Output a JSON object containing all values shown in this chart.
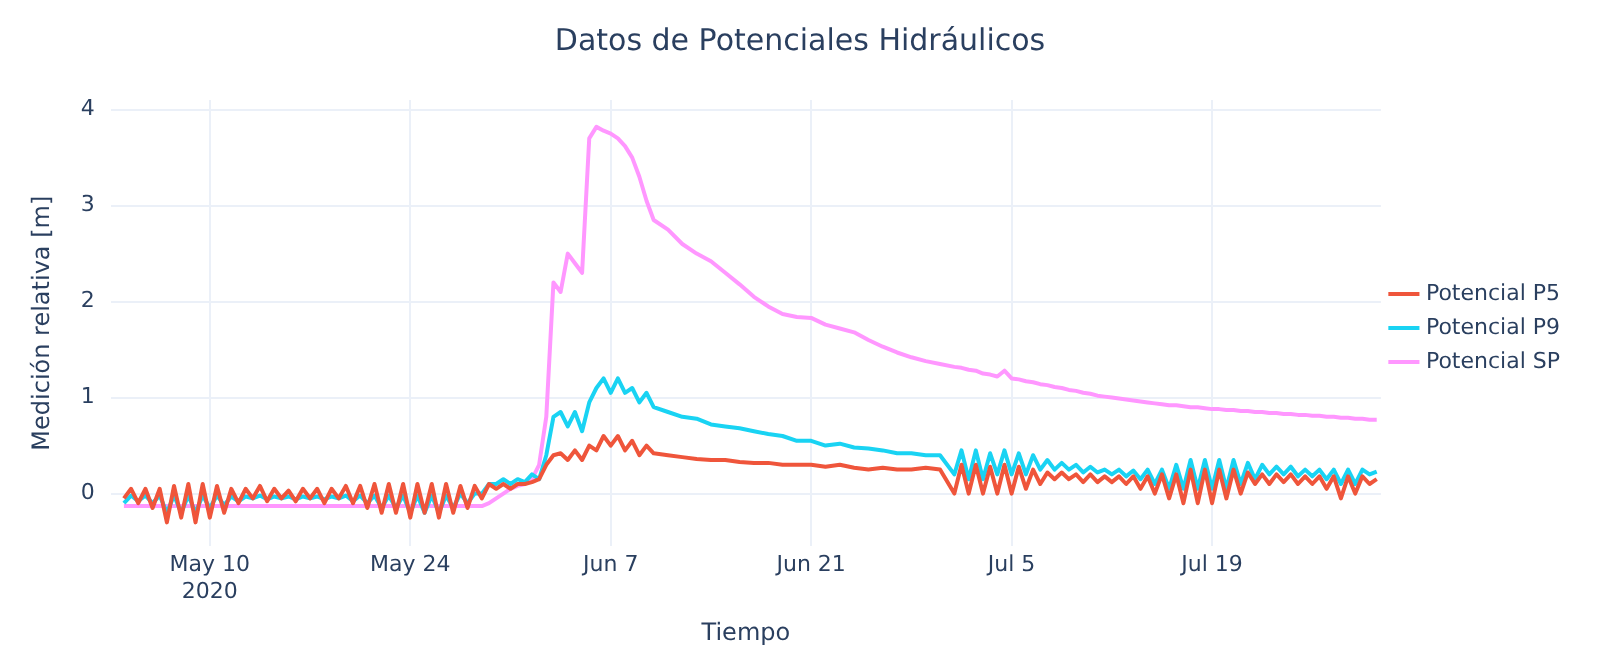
{
  "chart_data": {
    "type": "line",
    "title": "Datos de Potenciales Hidráulicos",
    "xlabel": "Tiempo",
    "ylabel": "Medición relativa [m]",
    "x": [
      "2020-05-04T00:00",
      "2020-05-04T12:00",
      "2020-05-05T00:00",
      "2020-05-05T12:00",
      "2020-05-06T00:00",
      "2020-05-06T12:00",
      "2020-05-07T00:00",
      "2020-05-07T12:00",
      "2020-05-08T00:00",
      "2020-05-08T12:00",
      "2020-05-09T00:00",
      "2020-05-09T12:00",
      "2020-05-10T00:00",
      "2020-05-10T12:00",
      "2020-05-11T00:00",
      "2020-05-11T12:00",
      "2020-05-12T00:00",
      "2020-05-12T12:00",
      "2020-05-13T00:00",
      "2020-05-13T12:00",
      "2020-05-14T00:00",
      "2020-05-14T12:00",
      "2020-05-15T00:00",
      "2020-05-15T12:00",
      "2020-05-16T00:00",
      "2020-05-16T12:00",
      "2020-05-17T00:00",
      "2020-05-17T12:00",
      "2020-05-18T00:00",
      "2020-05-18T12:00",
      "2020-05-19T00:00",
      "2020-05-19T12:00",
      "2020-05-20T00:00",
      "2020-05-20T12:00",
      "2020-05-21T00:00",
      "2020-05-21T12:00",
      "2020-05-22T00:00",
      "2020-05-22T12:00",
      "2020-05-23T00:00",
      "2020-05-23T12:00",
      "2020-05-24T00:00",
      "2020-05-24T12:00",
      "2020-05-25T00:00",
      "2020-05-25T12:00",
      "2020-05-26T00:00",
      "2020-05-26T12:00",
      "2020-05-27T00:00",
      "2020-05-27T12:00",
      "2020-05-28T00:00",
      "2020-05-28T12:00",
      "2020-05-29T00:00",
      "2020-05-29T12:00",
      "2020-05-30T00:00",
      "2020-05-30T12:00",
      "2020-05-31T00:00",
      "2020-05-31T12:00",
      "2020-06-01T00:00",
      "2020-06-01T12:00",
      "2020-06-02T00:00",
      "2020-06-02T12:00",
      "2020-06-03T00:00",
      "2020-06-03T12:00",
      "2020-06-04T00:00",
      "2020-06-04T12:00",
      "2020-06-05T00:00",
      "2020-06-05T12:00",
      "2020-06-06T00:00",
      "2020-06-06T12:00",
      "2020-06-07T00:00",
      "2020-06-07T12:00",
      "2020-06-08T00:00",
      "2020-06-08T12:00",
      "2020-06-09T00:00",
      "2020-06-09T12:00",
      "2020-06-10T00:00",
      "2020-06-11T00:00",
      "2020-06-12T00:00",
      "2020-06-13T00:00",
      "2020-06-14T00:00",
      "2020-06-15T00:00",
      "2020-06-16T00:00",
      "2020-06-17T00:00",
      "2020-06-18T00:00",
      "2020-06-19T00:00",
      "2020-06-20T00:00",
      "2020-06-21T00:00",
      "2020-06-22T00:00",
      "2020-06-23T00:00",
      "2020-06-24T00:00",
      "2020-06-25T00:00",
      "2020-06-26T00:00",
      "2020-06-27T00:00",
      "2020-06-28T00:00",
      "2020-06-29T00:00",
      "2020-06-30T00:00",
      "2020-07-01T00:00",
      "2020-07-01T12:00",
      "2020-07-02T00:00",
      "2020-07-02T12:00",
      "2020-07-03T00:00",
      "2020-07-03T12:00",
      "2020-07-04T00:00",
      "2020-07-04T12:00",
      "2020-07-05T00:00",
      "2020-07-05T12:00",
      "2020-07-06T00:00",
      "2020-07-06T12:00",
      "2020-07-07T00:00",
      "2020-07-07T12:00",
      "2020-07-08T00:00",
      "2020-07-08T12:00",
      "2020-07-09T00:00",
      "2020-07-09T12:00",
      "2020-07-10T00:00",
      "2020-07-10T12:00",
      "2020-07-11T00:00",
      "2020-07-11T12:00",
      "2020-07-12T00:00",
      "2020-07-12T12:00",
      "2020-07-13T00:00",
      "2020-07-13T12:00",
      "2020-07-14T00:00",
      "2020-07-14T12:00",
      "2020-07-15T00:00",
      "2020-07-15T12:00",
      "2020-07-16T00:00",
      "2020-07-16T12:00",
      "2020-07-17T00:00",
      "2020-07-17T12:00",
      "2020-07-18T00:00",
      "2020-07-18T12:00",
      "2020-07-19T00:00",
      "2020-07-19T12:00",
      "2020-07-20T00:00",
      "2020-07-20T12:00",
      "2020-07-21T00:00",
      "2020-07-21T12:00",
      "2020-07-22T00:00",
      "2020-07-22T12:00",
      "2020-07-23T00:00",
      "2020-07-23T12:00",
      "2020-07-24T00:00",
      "2020-07-24T12:00",
      "2020-07-25T00:00",
      "2020-07-25T12:00",
      "2020-07-26T00:00",
      "2020-07-26T12:00",
      "2020-07-27T00:00",
      "2020-07-27T12:00",
      "2020-07-28T00:00",
      "2020-07-28T12:00",
      "2020-07-29T00:00",
      "2020-07-29T12:00",
      "2020-07-30T00:00",
      "2020-07-30T12:00"
    ],
    "series": [
      {
        "name": "Potencial P5",
        "color": "#ef553b",
        "values": [
          -0.05,
          0.05,
          -0.1,
          0.05,
          -0.15,
          0.05,
          -0.3,
          0.08,
          -0.25,
          0.1,
          -0.3,
          0.1,
          -0.25,
          0.08,
          -0.2,
          0.05,
          -0.1,
          0.05,
          -0.05,
          0.08,
          -0.08,
          0.05,
          -0.05,
          0.03,
          -0.08,
          0.05,
          -0.05,
          0.05,
          -0.1,
          0.05,
          -0.05,
          0.08,
          -0.1,
          0.08,
          -0.15,
          0.1,
          -0.2,
          0.1,
          -0.2,
          0.1,
          -0.25,
          0.1,
          -0.2,
          0.1,
          -0.25,
          0.1,
          -0.2,
          0.08,
          -0.15,
          0.08,
          -0.05,
          0.1,
          0.05,
          0.1,
          0.05,
          0.1,
          0.1,
          0.12,
          0.15,
          0.3,
          0.4,
          0.42,
          0.35,
          0.45,
          0.35,
          0.5,
          0.45,
          0.6,
          0.5,
          0.6,
          0.45,
          0.55,
          0.4,
          0.5,
          0.42,
          0.4,
          0.38,
          0.36,
          0.35,
          0.35,
          0.33,
          0.32,
          0.32,
          0.3,
          0.3,
          0.3,
          0.28,
          0.3,
          0.27,
          0.25,
          0.27,
          0.25,
          0.25,
          0.27,
          0.25,
          0.0,
          0.3,
          0.0,
          0.3,
          0.0,
          0.28,
          0.0,
          0.3,
          0.0,
          0.28,
          0.05,
          0.25,
          0.1,
          0.22,
          0.15,
          0.22,
          0.15,
          0.2,
          0.12,
          0.2,
          0.12,
          0.18,
          0.12,
          0.18,
          0.1,
          0.18,
          0.05,
          0.18,
          0.0,
          0.2,
          -0.05,
          0.2,
          -0.1,
          0.25,
          -0.1,
          0.25,
          -0.1,
          0.25,
          -0.05,
          0.25,
          0.0,
          0.22,
          0.1,
          0.2,
          0.1,
          0.2,
          0.12,
          0.2,
          0.1,
          0.18,
          0.1,
          0.18,
          0.05,
          0.18,
          -0.05,
          0.18,
          0.0,
          0.18,
          0.1,
          0.15
        ]
      },
      {
        "name": "Potencial P9",
        "color": "#19d3f3",
        "values": [
          -0.1,
          -0.02,
          -0.08,
          -0.02,
          -0.1,
          -0.02,
          -0.2,
          -0.02,
          -0.2,
          -0.02,
          -0.2,
          -0.02,
          -0.15,
          -0.02,
          -0.12,
          -0.03,
          -0.08,
          -0.03,
          -0.05,
          -0.02,
          -0.06,
          -0.03,
          -0.05,
          -0.03,
          -0.06,
          -0.03,
          -0.05,
          -0.03,
          -0.06,
          -0.03,
          -0.05,
          -0.02,
          -0.08,
          -0.02,
          -0.1,
          -0.02,
          -0.15,
          -0.02,
          -0.15,
          -0.02,
          -0.2,
          -0.02,
          -0.2,
          -0.02,
          -0.2,
          -0.02,
          -0.15,
          0.0,
          -0.1,
          0.0,
          0.0,
          0.1,
          0.1,
          0.15,
          0.1,
          0.15,
          0.12,
          0.2,
          0.15,
          0.4,
          0.8,
          0.85,
          0.7,
          0.85,
          0.65,
          0.95,
          1.1,
          1.2,
          1.05,
          1.2,
          1.05,
          1.1,
          0.95,
          1.05,
          0.9,
          0.85,
          0.8,
          0.78,
          0.72,
          0.7,
          0.68,
          0.65,
          0.62,
          0.6,
          0.55,
          0.55,
          0.5,
          0.52,
          0.48,
          0.47,
          0.45,
          0.42,
          0.42,
          0.4,
          0.4,
          0.2,
          0.45,
          0.15,
          0.45,
          0.15,
          0.42,
          0.2,
          0.45,
          0.2,
          0.42,
          0.2,
          0.4,
          0.25,
          0.35,
          0.25,
          0.32,
          0.25,
          0.3,
          0.22,
          0.28,
          0.22,
          0.25,
          0.2,
          0.25,
          0.18,
          0.24,
          0.15,
          0.25,
          0.1,
          0.25,
          0.05,
          0.3,
          0.05,
          0.35,
          0.05,
          0.35,
          0.05,
          0.35,
          0.05,
          0.35,
          0.1,
          0.32,
          0.15,
          0.3,
          0.2,
          0.28,
          0.2,
          0.28,
          0.18,
          0.25,
          0.18,
          0.25,
          0.15,
          0.25,
          0.1,
          0.25,
          0.1,
          0.25,
          0.2,
          0.23
        ]
      },
      {
        "name": "Potencial SP",
        "color": "#ff97ff",
        "values": [
          -0.13,
          -0.13,
          -0.13,
          -0.13,
          -0.13,
          -0.13,
          -0.13,
          -0.13,
          -0.13,
          -0.13,
          -0.13,
          -0.13,
          -0.13,
          -0.13,
          -0.13,
          -0.13,
          -0.13,
          -0.13,
          -0.13,
          -0.13,
          -0.13,
          -0.13,
          -0.13,
          -0.13,
          -0.13,
          -0.13,
          -0.13,
          -0.13,
          -0.13,
          -0.13,
          -0.13,
          -0.13,
          -0.13,
          -0.13,
          -0.13,
          -0.13,
          -0.13,
          -0.13,
          -0.13,
          -0.13,
          -0.13,
          -0.13,
          -0.13,
          -0.13,
          -0.13,
          -0.13,
          -0.13,
          -0.13,
          -0.13,
          -0.13,
          -0.13,
          -0.1,
          -0.05,
          0.0,
          0.05,
          0.08,
          0.1,
          0.15,
          0.3,
          0.8,
          2.2,
          2.1,
          2.5,
          2.4,
          2.3,
          3.7,
          3.82,
          3.78,
          3.75,
          3.7,
          3.62,
          3.5,
          3.3,
          3.05,
          2.85,
          2.75,
          2.6,
          2.5,
          2.42,
          2.3,
          2.18,
          2.05,
          1.95,
          1.87,
          1.84,
          1.83,
          1.76,
          1.72,
          1.68,
          1.6,
          1.53,
          1.47,
          1.42,
          1.38,
          1.35,
          1.32,
          1.31,
          1.29,
          1.28,
          1.25,
          1.24,
          1.22,
          1.28,
          1.2,
          1.19,
          1.17,
          1.16,
          1.14,
          1.13,
          1.11,
          1.1,
          1.08,
          1.07,
          1.05,
          1.04,
          1.02,
          1.01,
          1.0,
          0.99,
          0.98,
          0.97,
          0.96,
          0.95,
          0.94,
          0.93,
          0.92,
          0.92,
          0.91,
          0.9,
          0.9,
          0.89,
          0.88,
          0.88,
          0.87,
          0.87,
          0.86,
          0.86,
          0.85,
          0.85,
          0.84,
          0.84,
          0.83,
          0.83,
          0.82,
          0.82,
          0.81,
          0.81,
          0.8,
          0.8,
          0.79,
          0.79,
          0.78,
          0.78,
          0.77,
          0.77
        ]
      }
    ],
    "xlim": [
      "2020-05-03T02:00",
      "2020-07-30T19:00"
    ],
    "xticks": [
      {
        "value": "2020-05-10",
        "label": "May 10\n2020"
      },
      {
        "value": "2020-05-24",
        "label": "May 24"
      },
      {
        "value": "2020-06-07",
        "label": "Jun 7"
      },
      {
        "value": "2020-06-21",
        "label": "Jun 21"
      },
      {
        "value": "2020-07-05",
        "label": "Jul 5"
      },
      {
        "value": "2020-07-19",
        "label": "Jul 19"
      }
    ],
    "ylim": [
      -0.55,
      4.1
    ],
    "yticks": [
      0,
      1,
      2,
      3,
      4
    ],
    "grid": true,
    "legend": "right",
    "marker": "none",
    "line_style": "solid"
  }
}
